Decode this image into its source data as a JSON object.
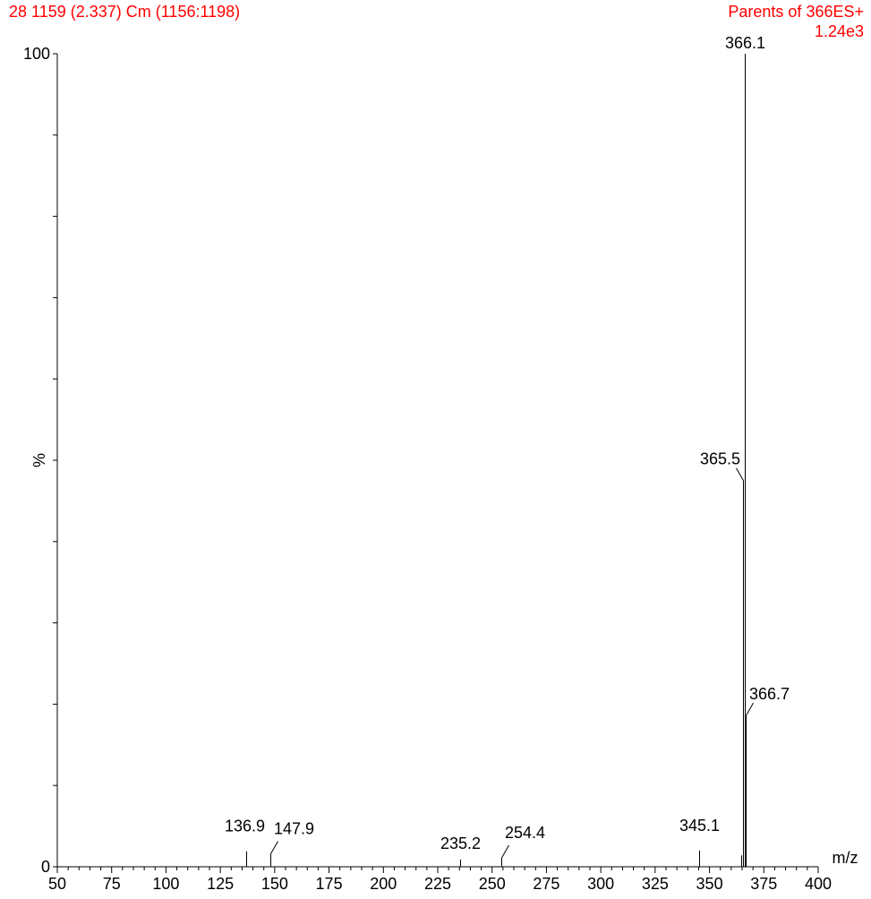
{
  "header": {
    "left_text": "28 1159 (2.337) Cm (1156:1198)",
    "right_text": "Parents of 366ES+",
    "intensity_scale": "1.24e3",
    "text_color": "#ff0000"
  },
  "chart_data": {
    "type": "bar",
    "title": "",
    "xlabel": "m/z",
    "ylabel": "%",
    "xlim": [
      50,
      400
    ],
    "ylim": [
      0,
      100
    ],
    "x_ticks": [
      50,
      75,
      100,
      125,
      150,
      175,
      200,
      225,
      250,
      275,
      300,
      325,
      350,
      375,
      400
    ],
    "y_tick_labels": [
      "0",
      "100"
    ],
    "grid": false,
    "peaks": [
      {
        "mz": 136.9,
        "intensity": 1.9,
        "label": "136.9"
      },
      {
        "mz": 147.9,
        "intensity": 1.6,
        "label": "147.9"
      },
      {
        "mz": 235.2,
        "intensity": 0.9,
        "label": "235.2"
      },
      {
        "mz": 254.4,
        "intensity": 1.1,
        "label": "254.4"
      },
      {
        "mz": 345.1,
        "intensity": 2.0,
        "label": "345.1"
      },
      {
        "mz": 364.6,
        "intensity": 1.4,
        "label": ""
      },
      {
        "mz": 365.5,
        "intensity": 47.5,
        "label": "365.5"
      },
      {
        "mz": 366.1,
        "intensity": 100,
        "label": "366.1"
      },
      {
        "mz": 366.7,
        "intensity": 18.6,
        "label": "366.7"
      }
    ]
  }
}
